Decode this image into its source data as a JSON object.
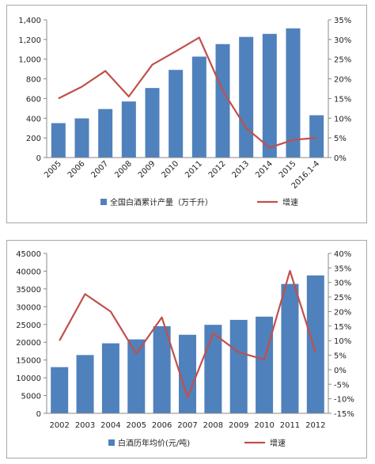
{
  "chart_data": [
    {
      "type": "bar",
      "categories": [
        "2005",
        "2006",
        "2007",
        "2008",
        "2009",
        "2010",
        "2011",
        "2012",
        "2013",
        "2014",
        "2015",
        "2016.1-4"
      ],
      "series": [
        {
          "name": "全国白酒累计产量（万千升）",
          "kind": "bar",
          "axis": "left",
          "values": [
            350,
            398,
            493,
            570,
            707,
            891,
            1026,
            1153,
            1226,
            1257,
            1313,
            430
          ]
        },
        {
          "name": "增速",
          "kind": "line",
          "axis": "right",
          "values": [
            15,
            18,
            22,
            15.5,
            23.6,
            27,
            30.5,
            17,
            7.5,
            2.5,
            4.5,
            5
          ]
        }
      ],
      "ylim": [
        0,
        1400
      ],
      "yticks": [
        "0",
        "200",
        "400",
        "600",
        "800",
        "1,000",
        "1,200",
        "1,400"
      ],
      "y2lim": [
        0,
        35
      ],
      "y2ticks": [
        "0%",
        "5%",
        "10%",
        "15%",
        "20%",
        "25%",
        "30%",
        "35%"
      ],
      "xlabel_rotation": "rotated-45",
      "legend_position": "bottom",
      "grid": false,
      "colors": {
        "bar": "#4f81bd",
        "line": "#c0504d"
      }
    },
    {
      "type": "bar",
      "categories": [
        "2002",
        "2003",
        "2004",
        "2005",
        "2006",
        "2007",
        "2008",
        "2009",
        "2010",
        "2011",
        "2012"
      ],
      "series": [
        {
          "name": "白酒历年均价(元/吨)",
          "kind": "bar",
          "axis": "left",
          "values": [
            13000,
            16400,
            19700,
            20800,
            24500,
            22100,
            24900,
            26300,
            27200,
            36400,
            38800
          ]
        },
        {
          "name": "增速",
          "kind": "line",
          "axis": "right",
          "values": [
            10,
            26,
            20,
            5.5,
            18,
            -9.5,
            12.5,
            6,
            3.5,
            34,
            6
          ]
        }
      ],
      "ylim": [
        0,
        45000
      ],
      "yticks": [
        "0",
        "5000",
        "10000",
        "15000",
        "20000",
        "25000",
        "30000",
        "35000",
        "40000",
        "45000"
      ],
      "y2lim": [
        -15,
        40
      ],
      "y2ticks": [
        "-15%",
        "-10%",
        "-5%",
        "0%",
        "5%",
        "10%",
        "15%",
        "20%",
        "25%",
        "30%",
        "35%",
        "40%"
      ],
      "xlabel_rotation": "horizontal",
      "legend_position": "bottom",
      "grid": false,
      "colors": {
        "bar": "#4f81bd",
        "line": "#c0504d"
      }
    }
  ]
}
